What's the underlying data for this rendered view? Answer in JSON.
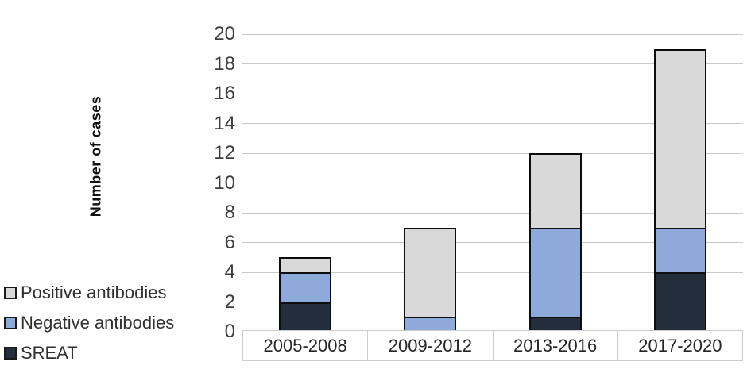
{
  "chart_data": {
    "type": "bar",
    "stacked": true,
    "title": "",
    "xlabel": "",
    "ylabel": "Number of cases",
    "ylim": [
      0,
      20
    ],
    "ytick_step": 2,
    "yticks": [
      0,
      2,
      4,
      6,
      8,
      10,
      12,
      14,
      16,
      18,
      20
    ],
    "grid": true,
    "legend_position": "bottom-left",
    "categories": [
      "2005-2008",
      "2009-2012",
      "2013-2016",
      "2017-2020"
    ],
    "series": [
      {
        "name": "SREAT",
        "color": "#232d3c",
        "values": [
          2,
          0,
          1,
          4
        ]
      },
      {
        "name": "Negative antibodies",
        "color": "#8eaadb",
        "values": [
          2,
          1,
          6,
          3
        ]
      },
      {
        "name": "Positive antibodies",
        "color": "#d9d9d9",
        "values": [
          1,
          6,
          5,
          12
        ]
      }
    ],
    "totals": [
      5,
      7,
      12,
      19
    ]
  },
  "legend": {
    "items": [
      {
        "label": "Positive antibodies",
        "color": "#d9d9d9"
      },
      {
        "label": "Negative antibodies",
        "color": "#8eaadb"
      },
      {
        "label": "SREAT",
        "color": "#232d3c"
      }
    ]
  },
  "colors": {
    "bar_border": "#0d0d0d",
    "gridline": "#c9c9c9",
    "axis_box_border": "#cfcece",
    "tick_text": "#3d3d3d",
    "label_text": "#262626"
  }
}
